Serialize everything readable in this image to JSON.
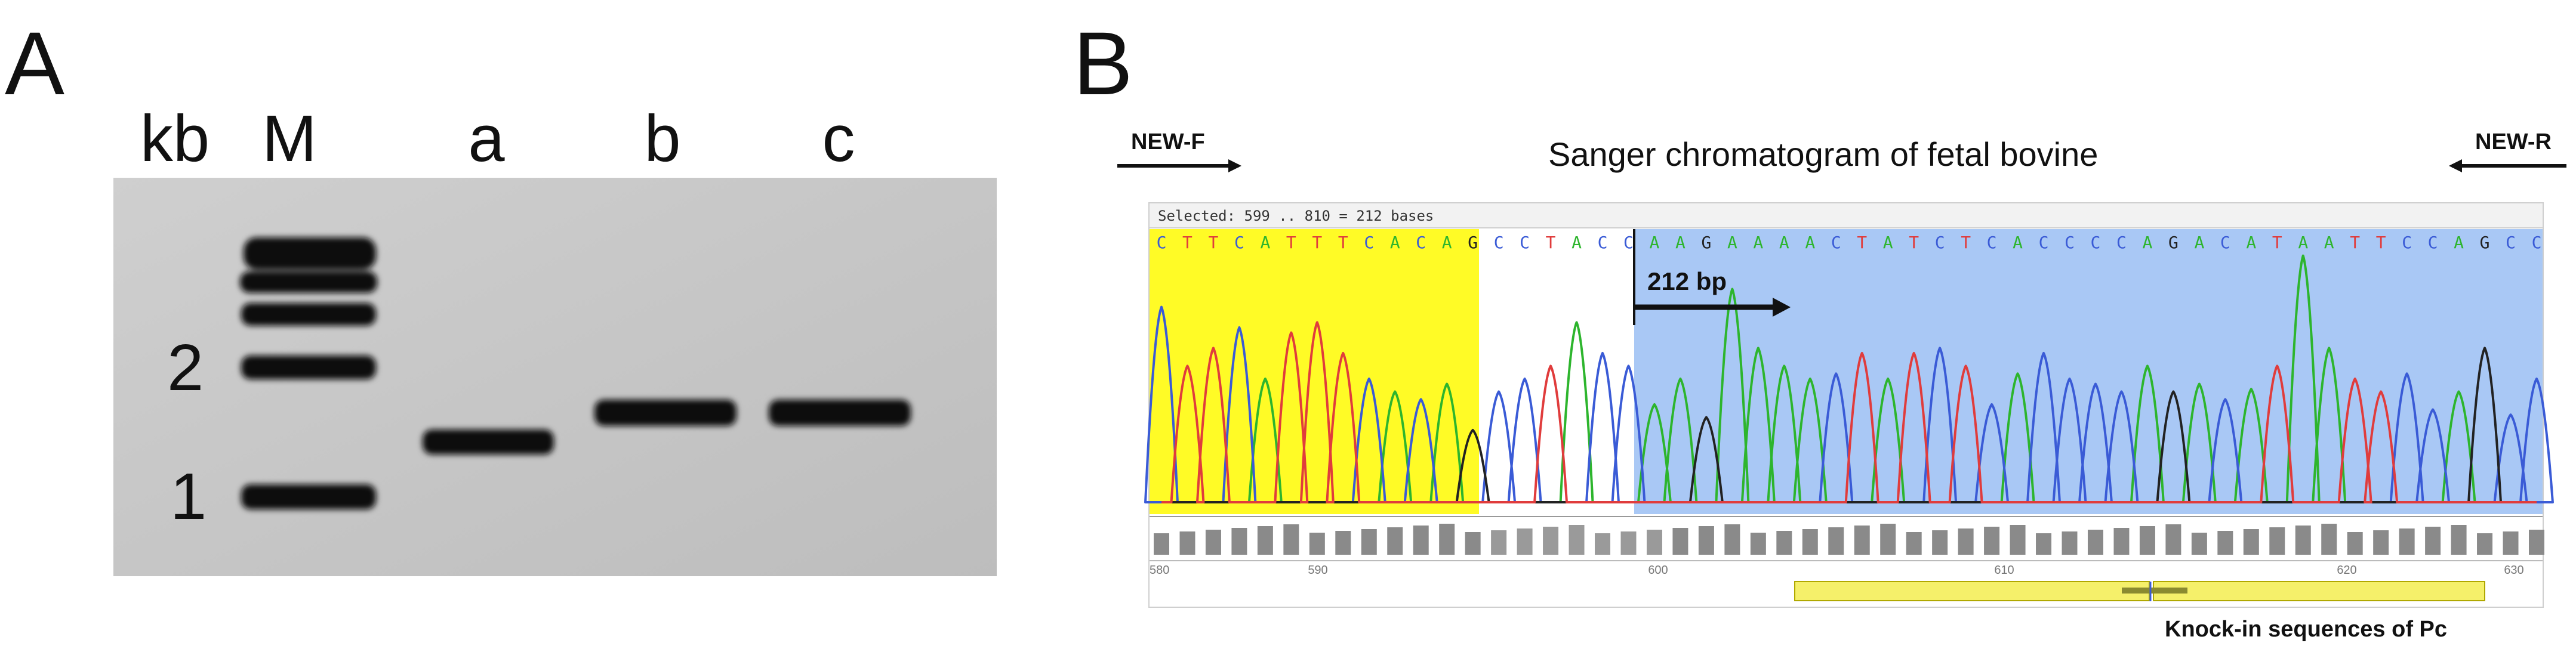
{
  "panel_a": {
    "letter": "A",
    "unit_label": "kb",
    "lane_labels": [
      "M",
      "a",
      "b",
      "c"
    ],
    "size_markers": [
      "2",
      "1"
    ]
  },
  "panel_b": {
    "letter": "B",
    "title": "Sanger chromatogram of fetal bovine",
    "primer_forward": "NEW-F",
    "primer_reverse": "NEW-R",
    "selection_text": "Selected: 599 .. 810 = 212 bases",
    "bases": [
      "C",
      "T",
      "T",
      "C",
      "A",
      "T",
      "T",
      "T",
      "C",
      "A",
      "C",
      "A",
      "G",
      "C",
      "C",
      "T",
      "A",
      "C",
      "C",
      "A",
      "A",
      "G",
      "A",
      "A",
      "A",
      "A",
      "C",
      "T",
      "A",
      "T",
      "C",
      "T",
      "C",
      "A",
      "C",
      "C",
      "C",
      "C",
      "A",
      "G",
      "A",
      "C",
      "A",
      "T",
      "A",
      "A",
      "T",
      "T",
      "C",
      "C",
      "A",
      "G",
      "C",
      "C"
    ],
    "insert_label": "212 bp",
    "position_ticks": [
      "580",
      "590",
      "600",
      "610",
      "620",
      "630"
    ],
    "annotation_label": "Knock-in sequences of Pc",
    "colors": {
      "A": "#2db52d",
      "C": "#3a5bd6",
      "G": "#222222",
      "T": "#e03c3c",
      "highlight_yellow": "#fffa00",
      "highlight_blue": "#a9c8f5",
      "annotation": "#f5f06a"
    }
  }
}
